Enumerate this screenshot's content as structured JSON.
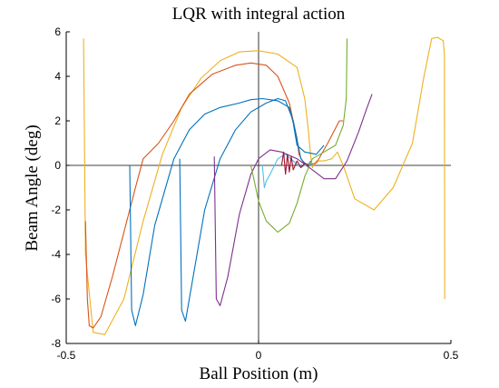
{
  "chart_data": {
    "type": "line",
    "title": "LQR with integral action",
    "xlabel": "Ball Position (m)",
    "ylabel": "Beam Angle (deg)",
    "xlim": [
      -0.5,
      0.5
    ],
    "ylim": [
      -8,
      6
    ],
    "xticks": [
      -0.5,
      0,
      0.5
    ],
    "xtick_labels": [
      "-0.5",
      "0",
      "0.5"
    ],
    "yticks": [
      -8,
      -6,
      -4,
      -2,
      0,
      2,
      4,
      6
    ],
    "ytick_labels": [
      "-8",
      "-6",
      "-4",
      "-2",
      "0",
      "2",
      "4",
      "6"
    ],
    "grid": false,
    "legend": "none",
    "zero_lines": true,
    "series": [
      {
        "color": "#EDB120",
        "x": [
          -0.455,
          -0.45,
          -0.43,
          -0.4,
          -0.35,
          -0.3,
          -0.25,
          -0.2,
          -0.15,
          -0.1,
          -0.05,
          0.0,
          0.05,
          0.1,
          0.12,
          0.13,
          0.135,
          0.14,
          0.15,
          0.17,
          0.19,
          0.205,
          0.22,
          0.25,
          0.3,
          0.35,
          0.4,
          0.43,
          0.45,
          0.465,
          0.48,
          0.483,
          0.484
        ],
        "y": [
          5.7,
          -4.0,
          -7.5,
          -7.6,
          -6.0,
          -2.5,
          0.5,
          2.6,
          3.9,
          4.7,
          5.1,
          5.15,
          5.0,
          4.4,
          3.0,
          1.5,
          0.5,
          -0.1,
          0.2,
          0.2,
          0.3,
          0.6,
          0.0,
          -1.5,
          -2.0,
          -1.0,
          1.0,
          4.0,
          5.7,
          5.75,
          5.6,
          5.0,
          -6.0
        ]
      },
      {
        "color": "#D95319",
        "x": [
          -0.45,
          -0.445,
          -0.44,
          -0.43,
          -0.41,
          -0.38,
          -0.35,
          -0.32,
          -0.3,
          -0.26,
          -0.22,
          -0.18,
          -0.12,
          -0.06,
          -0.02,
          0.02,
          0.05,
          0.08,
          0.1,
          0.105,
          0.12,
          0.15,
          0.18,
          0.21,
          0.22
        ],
        "y": [
          -2.5,
          -6.0,
          -7.2,
          -7.3,
          -6.8,
          -5.0,
          -3.0,
          -1.0,
          0.3,
          1.0,
          2.0,
          3.2,
          4.1,
          4.5,
          4.6,
          4.5,
          4.0,
          2.8,
          1.2,
          0.5,
          0.0,
          0.1,
          1.0,
          2.0,
          2.0
        ]
      },
      {
        "color": "#0072BD",
        "x": [
          -0.335,
          -0.33,
          -0.32,
          -0.3,
          -0.27,
          -0.22,
          -0.18,
          -0.14,
          -0.1,
          -0.05,
          -0.02,
          0.01,
          0.05,
          0.08,
          0.09,
          0.1,
          0.12,
          0.15,
          0.17
        ],
        "y": [
          0.0,
          -6.5,
          -7.2,
          -5.8,
          -2.7,
          0.3,
          1.6,
          2.3,
          2.6,
          2.8,
          2.95,
          3.0,
          2.9,
          2.6,
          1.9,
          0.9,
          0.6,
          0.5,
          0.9
        ]
      },
      {
        "color": "#0072BD",
        "x": [
          -0.205,
          -0.2,
          -0.19,
          -0.17,
          -0.14,
          -0.1,
          -0.06,
          -0.02,
          0.02,
          0.05,
          0.07,
          0.09,
          0.11,
          0.13,
          0.135
        ],
        "y": [
          0.3,
          -6.5,
          -7.0,
          -5.0,
          -2.0,
          0.3,
          1.6,
          2.4,
          2.8,
          3.0,
          2.9,
          2.0,
          0.3,
          -0.1,
          0.2
        ]
      },
      {
        "color": "#7E2F8E",
        "x": [
          -0.115,
          -0.11,
          -0.1,
          -0.08,
          -0.05,
          -0.02,
          0.0,
          0.03,
          0.06,
          0.1,
          0.14,
          0.17,
          0.2,
          0.23,
          0.26,
          0.28,
          0.295
        ],
        "y": [
          0.4,
          -6.0,
          -6.3,
          -5.0,
          -2.2,
          -0.4,
          0.3,
          0.7,
          0.6,
          0.3,
          -0.2,
          -0.6,
          -0.6,
          0.2,
          1.5,
          2.5,
          3.2
        ]
      },
      {
        "color": "#77AC30",
        "x": [
          -0.02,
          -0.01,
          0.0,
          0.02,
          0.05,
          0.08,
          0.1,
          0.12,
          0.14,
          0.17,
          0.2,
          0.22,
          0.228,
          0.23
        ],
        "y": [
          0.0,
          -0.8,
          -1.6,
          -2.5,
          -3.0,
          -2.6,
          -1.7,
          -0.5,
          0.3,
          0.6,
          0.9,
          1.8,
          3.0,
          5.7
        ]
      },
      {
        "color": "#4DBEEE",
        "x": [
          0.01,
          0.015,
          0.02,
          0.03,
          0.05,
          0.07,
          0.09,
          0.11,
          0.13,
          0.14
        ],
        "y": [
          0.0,
          -1.0,
          -0.7,
          -0.4,
          0.3,
          0.5,
          0.2,
          -0.1,
          0.1,
          0.0
        ]
      },
      {
        "color": "#A2142F",
        "x": [
          0.06,
          0.065,
          0.07,
          0.075,
          0.08,
          0.085,
          0.09,
          0.1,
          0.11,
          0.12,
          0.13
        ],
        "y": [
          0.0,
          0.6,
          -0.4,
          0.5,
          -0.3,
          0.4,
          -0.2,
          0.2,
          -0.1,
          0.1,
          0.0
        ]
      }
    ]
  }
}
